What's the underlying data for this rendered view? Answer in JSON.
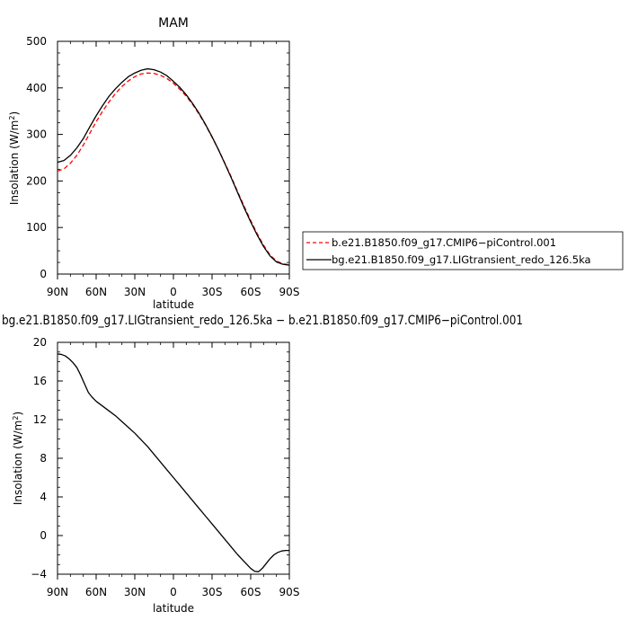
{
  "chart_data": [
    {
      "type": "line",
      "title": "MAM",
      "xlabel": "latitude",
      "ylabel": "Insolation  (W/m",
      "ylabel_sup": "2",
      "ylabel_close": ")",
      "xlim": [
        90,
        -90
      ],
      "ylim": [
        0,
        500
      ],
      "x_ticks": [
        90,
        60,
        30,
        0,
        -30,
        -60,
        -90
      ],
      "x_tick_labels": [
        "90N",
        "60N",
        "30N",
        "0",
        "30S",
        "60S",
        "90S"
      ],
      "y_ticks": [
        0,
        100,
        200,
        300,
        400,
        500
      ],
      "y_tick_labels": [
        "0",
        "100",
        "200",
        "300",
        "400",
        "500"
      ],
      "legend_placement": "right",
      "series": [
        {
          "name": "b.e21.B1850.f09_g17.CMIP6−piControl.001",
          "color": "#ff0000",
          "dash": "dashed",
          "x": [
            90,
            85,
            80,
            75,
            70,
            65,
            60,
            55,
            50,
            45,
            40,
            35,
            30,
            25,
            20,
            15,
            10,
            5,
            0,
            -5,
            -10,
            -15,
            -20,
            -25,
            -30,
            -35,
            -40,
            -45,
            -50,
            -55,
            -60,
            -65,
            -70,
            -75,
            -80,
            -85,
            -90
          ],
          "y": [
            221,
            226,
            238,
            255,
            277,
            302,
            327,
            350,
            370,
            388,
            403,
            415,
            424,
            430,
            432,
            431,
            427,
            420,
            410,
            397,
            382,
            364,
            343,
            320,
            294,
            267,
            238,
            208,
            176,
            145,
            115,
            87,
            62,
            41,
            28,
            22,
            20
          ]
        },
        {
          "name": "bg.e21.B1850.f09_g17.LIGtransient_redo_126.5ka",
          "color": "#000000",
          "dash": "solid",
          "x": [
            90,
            85,
            80,
            75,
            70,
            65,
            60,
            55,
            50,
            45,
            40,
            35,
            30,
            25,
            20,
            15,
            10,
            5,
            0,
            -5,
            -10,
            -15,
            -20,
            -25,
            -30,
            -35,
            -40,
            -45,
            -50,
            -55,
            -60,
            -65,
            -70,
            -75,
            -80,
            -85,
            -90
          ],
          "y": [
            240,
            244,
            255,
            271,
            291,
            316,
            340,
            362,
            382,
            398,
            412,
            424,
            432,
            438,
            441,
            439,
            434,
            426,
            414,
            401,
            385,
            366,
            345,
            321,
            295,
            267,
            237,
            206,
            174,
            142,
            112,
            84,
            59,
            39,
            26,
            21,
            19
          ]
        }
      ]
    },
    {
      "type": "line",
      "title": "bg.e21.B1850.f09_g17.LIGtransient_redo_126.5ka − b.e21.B1850.f09_g17.CMIP6−piControl.001",
      "xlabel": "latitude",
      "ylabel": "Insolation  (W/m",
      "ylabel_sup": "2",
      "ylabel_close": ")",
      "xlim": [
        90,
        -90
      ],
      "ylim": [
        -4,
        20
      ],
      "x_ticks": [
        90,
        60,
        30,
        0,
        -30,
        -60,
        -90
      ],
      "x_tick_labels": [
        "90N",
        "60N",
        "30N",
        "0",
        "30S",
        "60S",
        "90S"
      ],
      "y_ticks": [
        -4,
        0,
        4,
        8,
        12,
        16,
        20
      ],
      "y_tick_labels": [
        "−4",
        "0",
        "4",
        "8",
        "12",
        "16",
        "20"
      ],
      "series": [
        {
          "color": "#000000",
          "dash": "solid",
          "x": [
            90,
            87,
            84,
            81,
            78,
            75,
            72,
            69,
            66,
            63,
            60,
            55,
            50,
            45,
            40,
            35,
            30,
            25,
            20,
            15,
            10,
            5,
            0,
            -5,
            -10,
            -15,
            -20,
            -25,
            -30,
            -35,
            -40,
            -45,
            -50,
            -55,
            -60,
            -63,
            -66,
            -69,
            -72,
            -75,
            -78,
            -81,
            -84,
            -87,
            -90
          ],
          "y": [
            18.8,
            18.75,
            18.6,
            18.3,
            17.9,
            17.4,
            16.6,
            15.7,
            14.8,
            14.3,
            13.9,
            13.4,
            12.9,
            12.4,
            11.8,
            11.2,
            10.6,
            9.9,
            9.2,
            8.4,
            7.6,
            6.8,
            6.0,
            5.2,
            4.4,
            3.6,
            2.8,
            2.0,
            1.2,
            0.4,
            -0.4,
            -1.2,
            -2.0,
            -2.7,
            -3.4,
            -3.7,
            -3.75,
            -3.4,
            -2.9,
            -2.4,
            -2.0,
            -1.75,
            -1.6,
            -1.55,
            -1.55
          ]
        }
      ]
    }
  ]
}
